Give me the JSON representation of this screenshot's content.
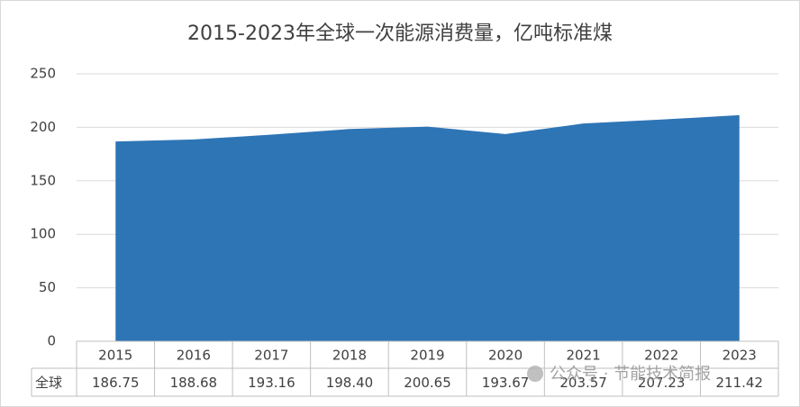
{
  "chart_data": {
    "type": "area",
    "title": "2015-2023年全球一次能源消费量，亿吨标准煤",
    "categories": [
      "2015",
      "2016",
      "2017",
      "2018",
      "2019",
      "2020",
      "2021",
      "2022",
      "2023"
    ],
    "series": [
      {
        "name": "全球",
        "color": "#2e75b6",
        "values": [
          186.75,
          188.68,
          193.16,
          198.4,
          200.65,
          193.67,
          203.57,
          207.23,
          211.42
        ],
        "value_labels": [
          "186.75",
          "188.68",
          "193.16",
          "198.40",
          "200.65",
          "193.67",
          "203.57",
          "207.23",
          "211.42"
        ]
      }
    ],
    "ylim": [
      0,
      250
    ],
    "yticks": [
      0,
      50,
      100,
      150,
      200,
      250
    ],
    "grid": true,
    "data_table": true
  },
  "watermark": "公众号 · 节能技术简报"
}
